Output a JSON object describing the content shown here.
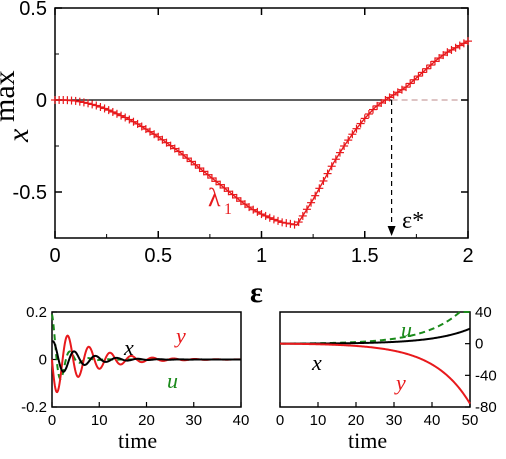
{
  "colors": {
    "lambda": "#e8191c",
    "black": "#000000",
    "zero_line": "#c9a0a0",
    "green": "#1a8a1a",
    "red": "#e8191c"
  },
  "chart_data": [
    {
      "type": "scatter",
      "id": "main",
      "ylabel_main": "x",
      "ylabel_sup": "max",
      "xlabel": "ε",
      "xlim": [
        0,
        2
      ],
      "ylim": [
        -0.75,
        0.5
      ],
      "x_ticks": [
        0,
        0.5,
        1,
        1.5,
        2
      ],
      "x_tick_labels": [
        "0",
        "0.5",
        "1",
        "1.5",
        "2"
      ],
      "y_ticks": [
        -0.5,
        0,
        0.5
      ],
      "y_tick_labels": [
        "-0.5",
        "0",
        "0.5"
      ],
      "series": [
        {
          "name": "λ",
          "name_sub": "1",
          "marker": "plus",
          "color": "#e8191c",
          "x": [
            0,
            0.05,
            0.1,
            0.15,
            0.2,
            0.25,
            0.3,
            0.35,
            0.4,
            0.45,
            0.5,
            0.55,
            0.6,
            0.65,
            0.7,
            0.75,
            0.8,
            0.85,
            0.9,
            0.95,
            1.0,
            1.05,
            1.1,
            1.15,
            1.17,
            1.2,
            1.25,
            1.3,
            1.35,
            1.4,
            1.45,
            1.5,
            1.55,
            1.6,
            1.65,
            1.7,
            1.75,
            1.8,
            1.85,
            1.9,
            1.95,
            2.0
          ],
          "y": [
            0,
            0,
            -0.005,
            -0.015,
            -0.03,
            -0.05,
            -0.075,
            -0.1,
            -0.13,
            -0.165,
            -0.2,
            -0.24,
            -0.28,
            -0.325,
            -0.37,
            -0.415,
            -0.46,
            -0.505,
            -0.55,
            -0.59,
            -0.62,
            -0.645,
            -0.665,
            -0.675,
            -0.68,
            -0.63,
            -0.54,
            -0.44,
            -0.34,
            -0.25,
            -0.17,
            -0.1,
            -0.04,
            0,
            0.035,
            0.07,
            0.12,
            0.17,
            0.22,
            0.26,
            0.29,
            0.32
          ]
        }
      ],
      "annotations": {
        "epsilon_star": "ε*",
        "epsilon_star_x": 1.63
      }
    },
    {
      "type": "line",
      "id": "bottom-left",
      "xlabel": "time",
      "xlim": [
        0,
        40
      ],
      "ylim": [
        -0.2,
        0.2
      ],
      "x_ticks": [
        0,
        10,
        20,
        30,
        40
      ],
      "x_tick_labels": [
        "0",
        "10",
        "20",
        "30",
        "40"
      ],
      "y_ticks": [
        -0.2,
        0,
        0.2
      ],
      "y_tick_labels": [
        "-0.2",
        "0",
        "0.2"
      ],
      "labels": {
        "x": "x",
        "y": "y",
        "u": "u"
      }
    },
    {
      "type": "line",
      "id": "bottom-right",
      "xlabel": "time",
      "xlim": [
        0,
        50
      ],
      "ylim": [
        -80,
        40
      ],
      "x_ticks": [
        0,
        10,
        20,
        30,
        40,
        50
      ],
      "x_tick_labels": [
        "0",
        "10",
        "20",
        "30",
        "40",
        "50"
      ],
      "y_ticks": [
        40,
        0,
        -40,
        -80
      ],
      "y_tick_labels": [
        "40",
        "0",
        "-40",
        "-80"
      ],
      "labels": {
        "x": "x",
        "y": "y",
        "u": "u"
      }
    }
  ]
}
